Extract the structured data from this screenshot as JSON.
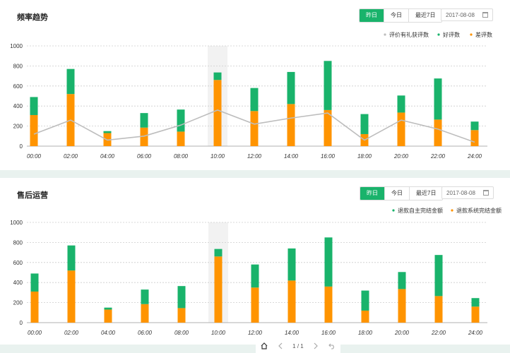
{
  "colors": {
    "green": "#19b36b",
    "orange": "#ff9400",
    "line": "#bdbdbd"
  },
  "panels": [
    {
      "title": "频率趋势",
      "tabs": [
        "昨日",
        "今日",
        "最近7日"
      ],
      "active_tab": 0,
      "date": "2017-08-08",
      "legend": [
        "评价有礼获评数",
        "好评数",
        "差评数"
      ]
    },
    {
      "title": "售后运营",
      "tabs": [
        "昨日",
        "今日",
        "最近7日"
      ],
      "active_tab": 0,
      "date": "2017-08-08",
      "legend": [
        "退款自主完结金额",
        "退款系统完结金额"
      ]
    }
  ],
  "chart_data": [
    {
      "type": "bar",
      "stacked": true,
      "categories": [
        "00:00",
        "02:00",
        "04:00",
        "06:00",
        "08:00",
        "10:00",
        "12:00",
        "14:00",
        "16:00",
        "18:00",
        "20:00",
        "22:00",
        "24:00"
      ],
      "series": [
        {
          "name": "差评数",
          "color": "#ff9400",
          "values": [
            310,
            520,
            130,
            185,
            145,
            660,
            350,
            420,
            360,
            120,
            335,
            265,
            160
          ]
        },
        {
          "name": "好评数",
          "color": "#19b36b",
          "values": [
            180,
            250,
            20,
            145,
            220,
            75,
            230,
            320,
            490,
            200,
            170,
            410,
            85
          ]
        },
        {
          "name": "评价有礼获评数",
          "type": "line",
          "color": "#bdbdbd",
          "values": [
            120,
            260,
            60,
            100,
            210,
            360,
            220,
            280,
            330,
            60,
            260,
            170,
            40
          ]
        }
      ],
      "yticks": [
        0,
        200,
        400,
        600,
        800,
        1000
      ],
      "ylim": [
        0,
        1000
      ],
      "highlight_category": "10:00",
      "grid": true,
      "legend_position": "top-right"
    },
    {
      "type": "bar",
      "stacked": true,
      "categories": [
        "00:00",
        "02:00",
        "04:00",
        "06:00",
        "08:00",
        "10:00",
        "12:00",
        "14:00",
        "16:00",
        "18:00",
        "20:00",
        "22:00",
        "24:00"
      ],
      "series": [
        {
          "name": "退款系统完结金额",
          "color": "#ff9400",
          "values": [
            310,
            520,
            130,
            185,
            145,
            660,
            350,
            420,
            360,
            120,
            335,
            265,
            160
          ]
        },
        {
          "name": "退款自主完结金额",
          "color": "#19b36b",
          "values": [
            180,
            250,
            20,
            145,
            220,
            75,
            230,
            320,
            490,
            200,
            170,
            410,
            85
          ]
        }
      ],
      "yticks": [
        0,
        200,
        400,
        600,
        800,
        1000
      ],
      "ylim": [
        0,
        1000
      ],
      "highlight_category": "10:00",
      "grid": true,
      "legend_position": "top-right"
    }
  ],
  "pager": {
    "page_text": "1 / 1"
  }
}
